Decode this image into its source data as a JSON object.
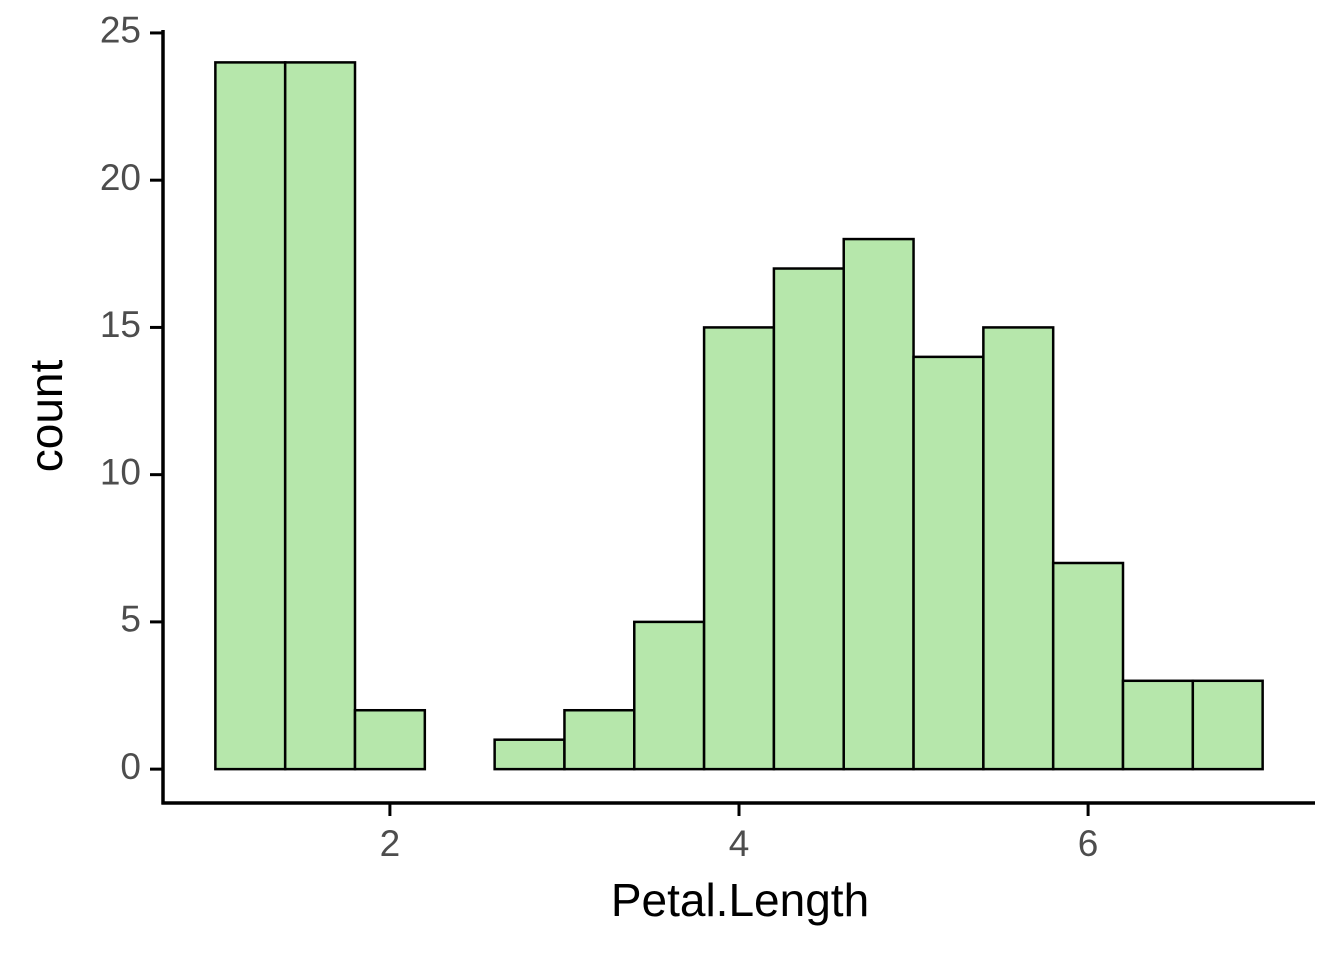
{
  "chart_data": {
    "type": "histogram",
    "x_label": "Petal.Length",
    "y_label": "count",
    "bins": [
      1.0,
      1.4,
      1.8,
      2.2,
      2.6,
      3.0,
      3.4,
      3.8,
      4.2,
      4.6,
      5.0,
      5.4,
      5.8,
      6.2,
      6.6,
      7.0
    ],
    "values": [
      24,
      24,
      2,
      0,
      1,
      2,
      5,
      15,
      17,
      18,
      14,
      15,
      7,
      3,
      3
    ],
    "color": "#b6e7ab",
    "edge_color": "#000000",
    "xlim": [
      0.7,
      7.3
    ],
    "ylim": [
      -1.15,
      25.1
    ],
    "xticks": [
      2,
      4,
      6
    ],
    "yticks": [
      0,
      5,
      10,
      15,
      20,
      25
    ]
  }
}
